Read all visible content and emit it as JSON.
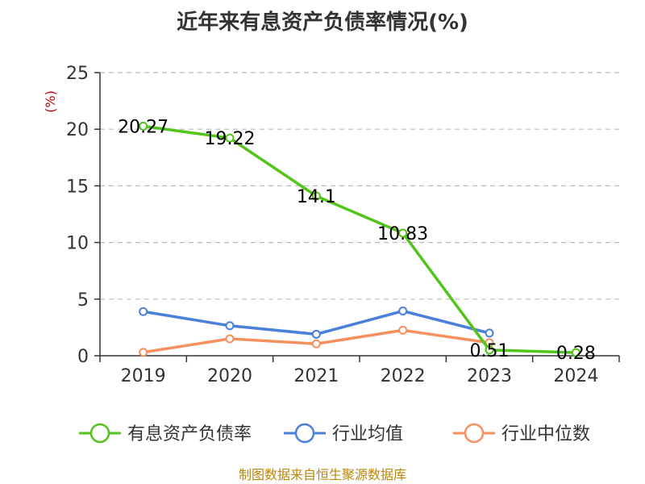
{
  "chart_data": {
    "type": "line",
    "title": "近年来有息资产负债率情况(%)",
    "ylabel": "(%)",
    "ylim": [
      0,
      25
    ],
    "yticks": [
      0,
      5,
      10,
      15,
      20,
      25
    ],
    "categories": [
      "2019",
      "2020",
      "2021",
      "2022",
      "2023",
      "2024"
    ],
    "grid": true,
    "legend_position": "bottom",
    "series": [
      {
        "name": "有息资产负债率",
        "color": "#52c41a",
        "values": [
          20.27,
          19.22,
          14.1,
          10.83,
          0.51,
          0.28
        ],
        "labels": [
          "20.27",
          "19.22",
          "14.1",
          "10.83",
          "0.51",
          "0.28"
        ]
      },
      {
        "name": "行业均值",
        "color": "#4a7fdb",
        "values": [
          3.9,
          2.65,
          1.9,
          3.95,
          2.0,
          null
        ]
      },
      {
        "name": "行业中位数",
        "color": "#f4915e",
        "values": [
          0.3,
          1.5,
          1.05,
          2.25,
          1.15,
          null
        ]
      }
    ],
    "source": "制图数据来自恒生聚源数据库"
  }
}
